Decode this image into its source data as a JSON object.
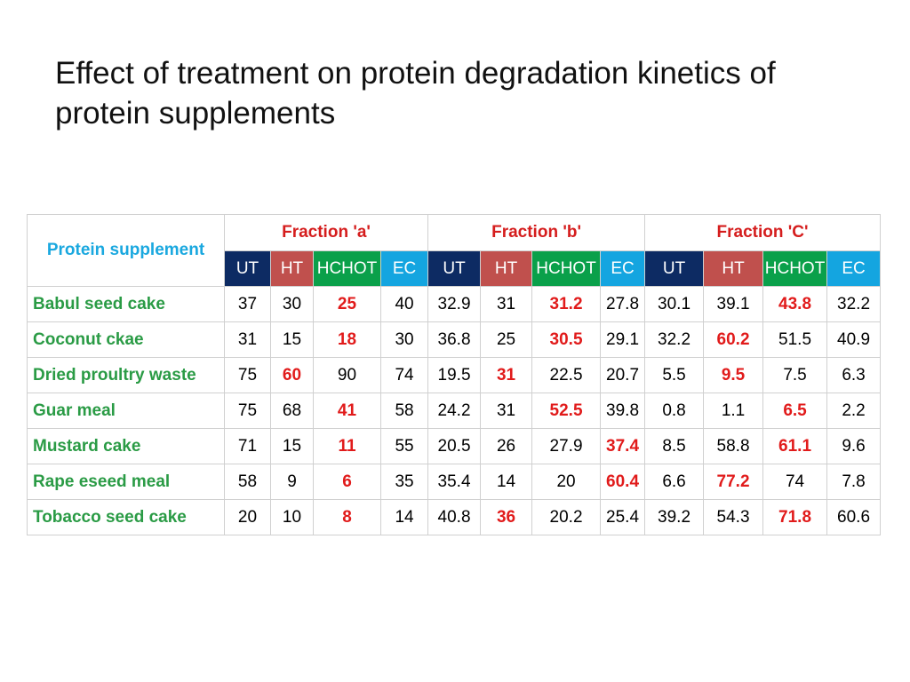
{
  "title": "Effect of treatment on protein degradation kinetics of protein supplements",
  "table": {
    "corner_label": "Protein supplement",
    "fractions": [
      "Fraction 'a'",
      "Fraction 'b'",
      "Fraction 'C'"
    ],
    "sub_columns": [
      "UT",
      "HT",
      "HCHOT",
      "EC"
    ],
    "rows": [
      {
        "name": "Babul seed cake",
        "values": [
          "37",
          "30",
          "25",
          "40",
          "32.9",
          "31",
          "31.2",
          "27.8",
          "30.1",
          "39.1",
          "43.8",
          "32.2"
        ],
        "highlight": [
          2,
          6,
          10
        ]
      },
      {
        "name": "Coconut ckae",
        "values": [
          "31",
          "15",
          "18",
          "30",
          "36.8",
          "25",
          "30.5",
          "29.1",
          "32.2",
          "60.2",
          "51.5",
          "40.9"
        ],
        "highlight": [
          2,
          6,
          9
        ]
      },
      {
        "name": "Dried proultry waste",
        "values": [
          "75",
          "60",
          "90",
          "74",
          "19.5",
          "31",
          "22.5",
          "20.7",
          "5.5",
          "9.5",
          "7.5",
          "6.3"
        ],
        "highlight": [
          1,
          5,
          9
        ]
      },
      {
        "name": "Guar meal",
        "values": [
          "75",
          "68",
          "41",
          "58",
          "24.2",
          "31",
          "52.5",
          "39.8",
          "0.8",
          "1.1",
          "6.5",
          "2.2"
        ],
        "highlight": [
          2,
          6,
          10
        ]
      },
      {
        "name": "Mustard cake",
        "values": [
          "71",
          "15",
          "11",
          "55",
          "20.5",
          "26",
          "27.9",
          "37.4",
          "8.5",
          "58.8",
          "61.1",
          "9.6"
        ],
        "highlight": [
          2,
          7,
          10
        ]
      },
      {
        "name": "Rape eseed meal",
        "values": [
          "58",
          "9",
          "6",
          "35",
          "35.4",
          "14",
          "20",
          "60.4",
          "6.6",
          "77.2",
          "74",
          "7.8"
        ],
        "highlight": [
          2,
          7,
          9
        ]
      },
      {
        "name": "Tobacco seed cake",
        "values": [
          "20",
          "10",
          "8",
          "14",
          "40.8",
          "36",
          "20.2",
          "25.4",
          "39.2",
          "54.3",
          "71.8",
          "60.6"
        ],
        "highlight": [
          2,
          5,
          10
        ]
      }
    ]
  },
  "colors": {
    "UT": "#0d2b63",
    "HT": "#c0504d",
    "HCHOT": "#0aa04a",
    "EC": "#14a5e0",
    "row_label": "#2a9b45",
    "header_label": "#1aa8df",
    "highlight": "#e11b1b"
  }
}
